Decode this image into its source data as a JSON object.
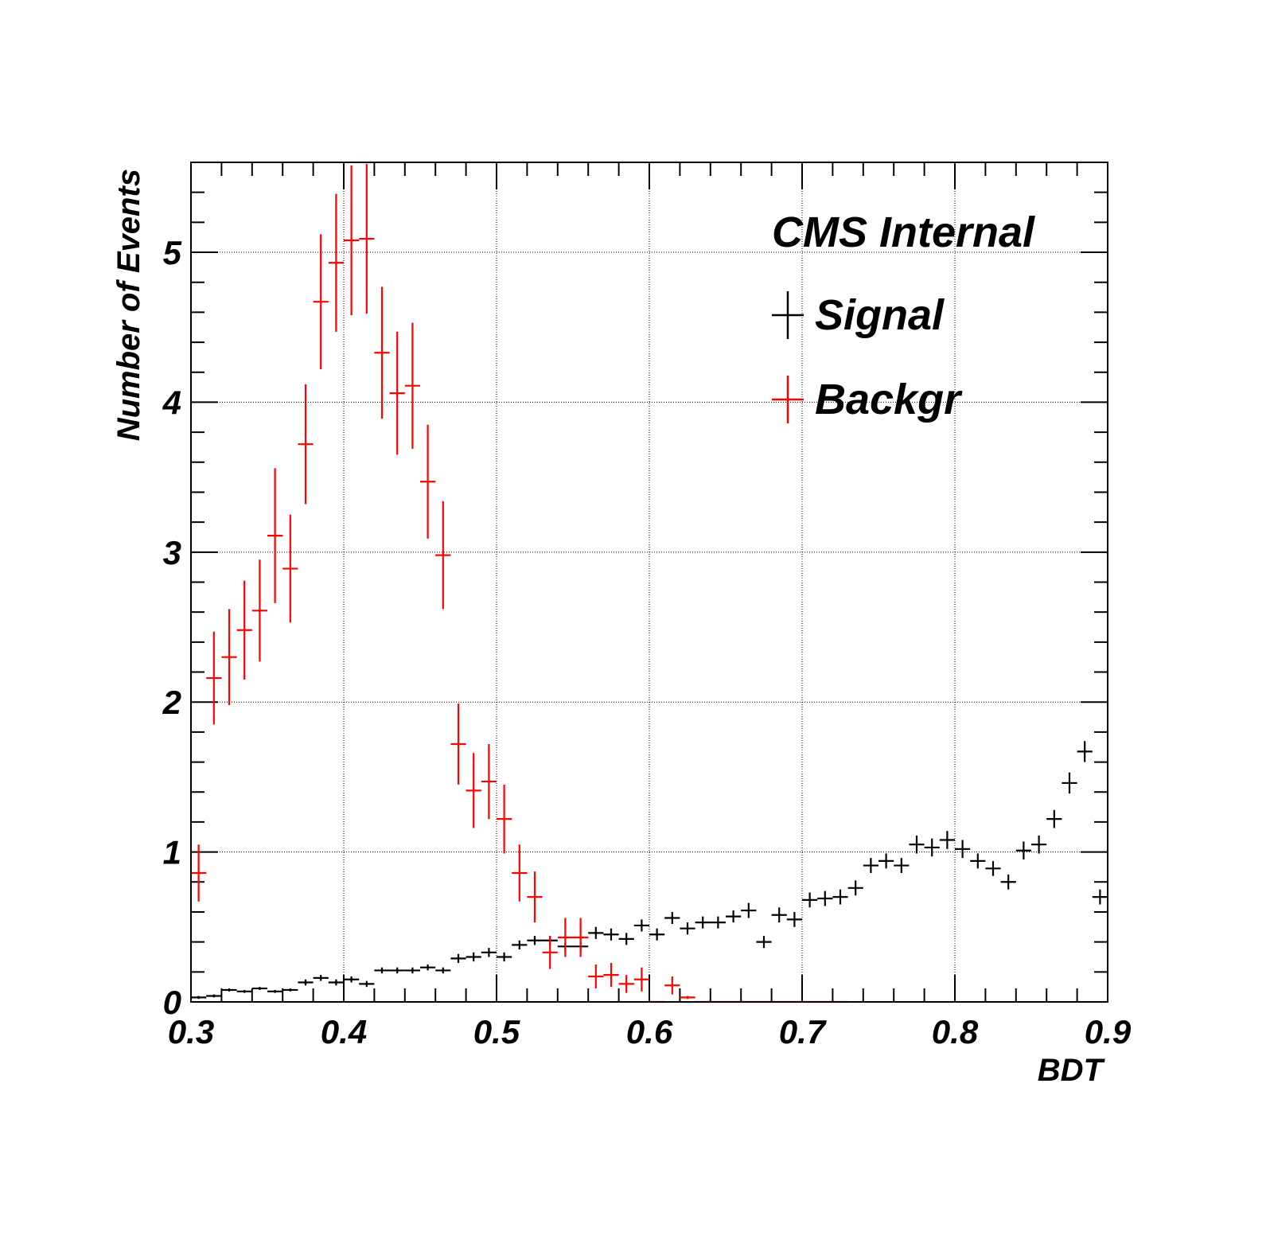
{
  "chart_data": {
    "type": "scatter",
    "title": "CMS Internal",
    "xlabel": "BDT",
    "ylabel": "Number of Events",
    "xlim": [
      0.3,
      0.9
    ],
    "ylim": [
      0,
      5.6
    ],
    "grid": true,
    "legend_position": "top-right",
    "x_ticks": [
      0.3,
      0.4,
      0.5,
      0.6,
      0.7,
      0.8,
      0.9
    ],
    "x_tick_labels": [
      "0.3",
      "0.4",
      "0.5",
      "0.6",
      "0.7",
      "0.8",
      "0.9"
    ],
    "y_ticks": [
      0,
      1,
      2,
      3,
      4,
      5
    ],
    "y_tick_labels": [
      "0",
      "1",
      "2",
      "3",
      "4",
      "5"
    ],
    "bin_width": 0.01,
    "x": [
      0.305,
      0.315,
      0.325,
      0.335,
      0.345,
      0.355,
      0.365,
      0.375,
      0.385,
      0.395,
      0.405,
      0.415,
      0.425,
      0.435,
      0.445,
      0.455,
      0.465,
      0.475,
      0.485,
      0.495,
      0.505,
      0.515,
      0.525,
      0.535,
      0.545,
      0.555,
      0.565,
      0.575,
      0.585,
      0.595,
      0.605,
      0.615,
      0.625,
      0.635,
      0.645,
      0.655,
      0.665,
      0.675,
      0.685,
      0.695,
      0.705,
      0.715,
      0.725,
      0.735,
      0.745,
      0.755,
      0.765,
      0.775,
      0.785,
      0.795,
      0.805,
      0.815,
      0.825,
      0.835,
      0.845,
      0.855,
      0.865,
      0.875,
      0.885,
      0.895
    ],
    "series": [
      {
        "name": "Signal",
        "color": "#000000",
        "values": [
          0.03,
          0.04,
          0.08,
          0.07,
          0.09,
          0.07,
          0.08,
          0.13,
          0.16,
          0.13,
          0.15,
          0.12,
          0.21,
          0.21,
          0.21,
          0.23,
          0.21,
          0.29,
          0.3,
          0.33,
          0.3,
          0.38,
          0.41,
          0.41,
          0.37,
          0.37,
          0.46,
          0.45,
          0.42,
          0.51,
          0.45,
          0.56,
          0.49,
          0.53,
          0.53,
          0.57,
          0.61,
          0.4,
          0.58,
          0.55,
          0.68,
          0.69,
          0.7,
          0.76,
          0.91,
          0.94,
          0.91,
          1.05,
          1.03,
          1.08,
          1.02,
          0.94,
          0.89,
          0.8,
          1.01,
          1.05,
          1.22,
          1.46,
          1.67,
          0.7
        ],
        "errors": [
          0.01,
          0.01,
          0.01,
          0.01,
          0.01,
          0.01,
          0.01,
          0.02,
          0.02,
          0.02,
          0.02,
          0.02,
          0.02,
          0.02,
          0.02,
          0.02,
          0.02,
          0.03,
          0.03,
          0.03,
          0.03,
          0.03,
          0.03,
          0.03,
          0.03,
          0.03,
          0.04,
          0.04,
          0.04,
          0.04,
          0.04,
          0.04,
          0.04,
          0.04,
          0.04,
          0.04,
          0.05,
          0.04,
          0.05,
          0.05,
          0.05,
          0.05,
          0.05,
          0.05,
          0.05,
          0.05,
          0.05,
          0.06,
          0.06,
          0.06,
          0.06,
          0.05,
          0.05,
          0.05,
          0.06,
          0.06,
          0.06,
          0.07,
          0.07,
          0.05
        ]
      },
      {
        "name": "Backgr",
        "color": "#ff0000",
        "values": [
          0.86,
          2.16,
          2.3,
          2.48,
          2.61,
          3.11,
          2.89,
          3.72,
          4.67,
          4.93,
          5.08,
          5.09,
          4.33,
          4.06,
          4.11,
          3.47,
          2.98,
          1.72,
          1.41,
          1.47,
          1.22,
          0.86,
          0.7,
          0.33,
          0.43,
          0.43,
          0.17,
          0.18,
          0.12,
          0.15,
          0.0,
          0.11,
          0.03,
          0.0,
          0.0,
          0.0,
          0.0,
          0.0,
          0.0,
          0.0,
          0.0,
          0.0,
          0.0,
          0.0,
          0.0,
          0.0,
          0.0,
          0.0,
          0.0,
          0.0,
          0.0,
          0.0,
          0.0,
          0.0,
          0.0,
          0.0,
          0.0,
          0.0,
          0.0,
          0.0
        ],
        "errors": [
          0.19,
          0.31,
          0.32,
          0.33,
          0.34,
          0.45,
          0.36,
          0.4,
          0.45,
          0.46,
          0.5,
          0.5,
          0.44,
          0.41,
          0.42,
          0.38,
          0.36,
          0.27,
          0.25,
          0.25,
          0.23,
          0.19,
          0.17,
          0.11,
          0.13,
          0.13,
          0.08,
          0.08,
          0.06,
          0.08,
          0.0,
          0.06,
          0.01,
          0.0,
          0.0,
          0.0,
          0.0,
          0.0,
          0.0,
          0.0,
          0.0,
          0.0,
          0.0,
          0.0,
          0.0,
          0.0,
          0.0,
          0.0,
          0.0,
          0.0,
          0.0,
          0.0,
          0.0,
          0.0,
          0.0,
          0.0,
          0.0,
          0.0,
          0.0,
          0.0
        ],
        "drawn_bins": 43
      }
    ]
  }
}
